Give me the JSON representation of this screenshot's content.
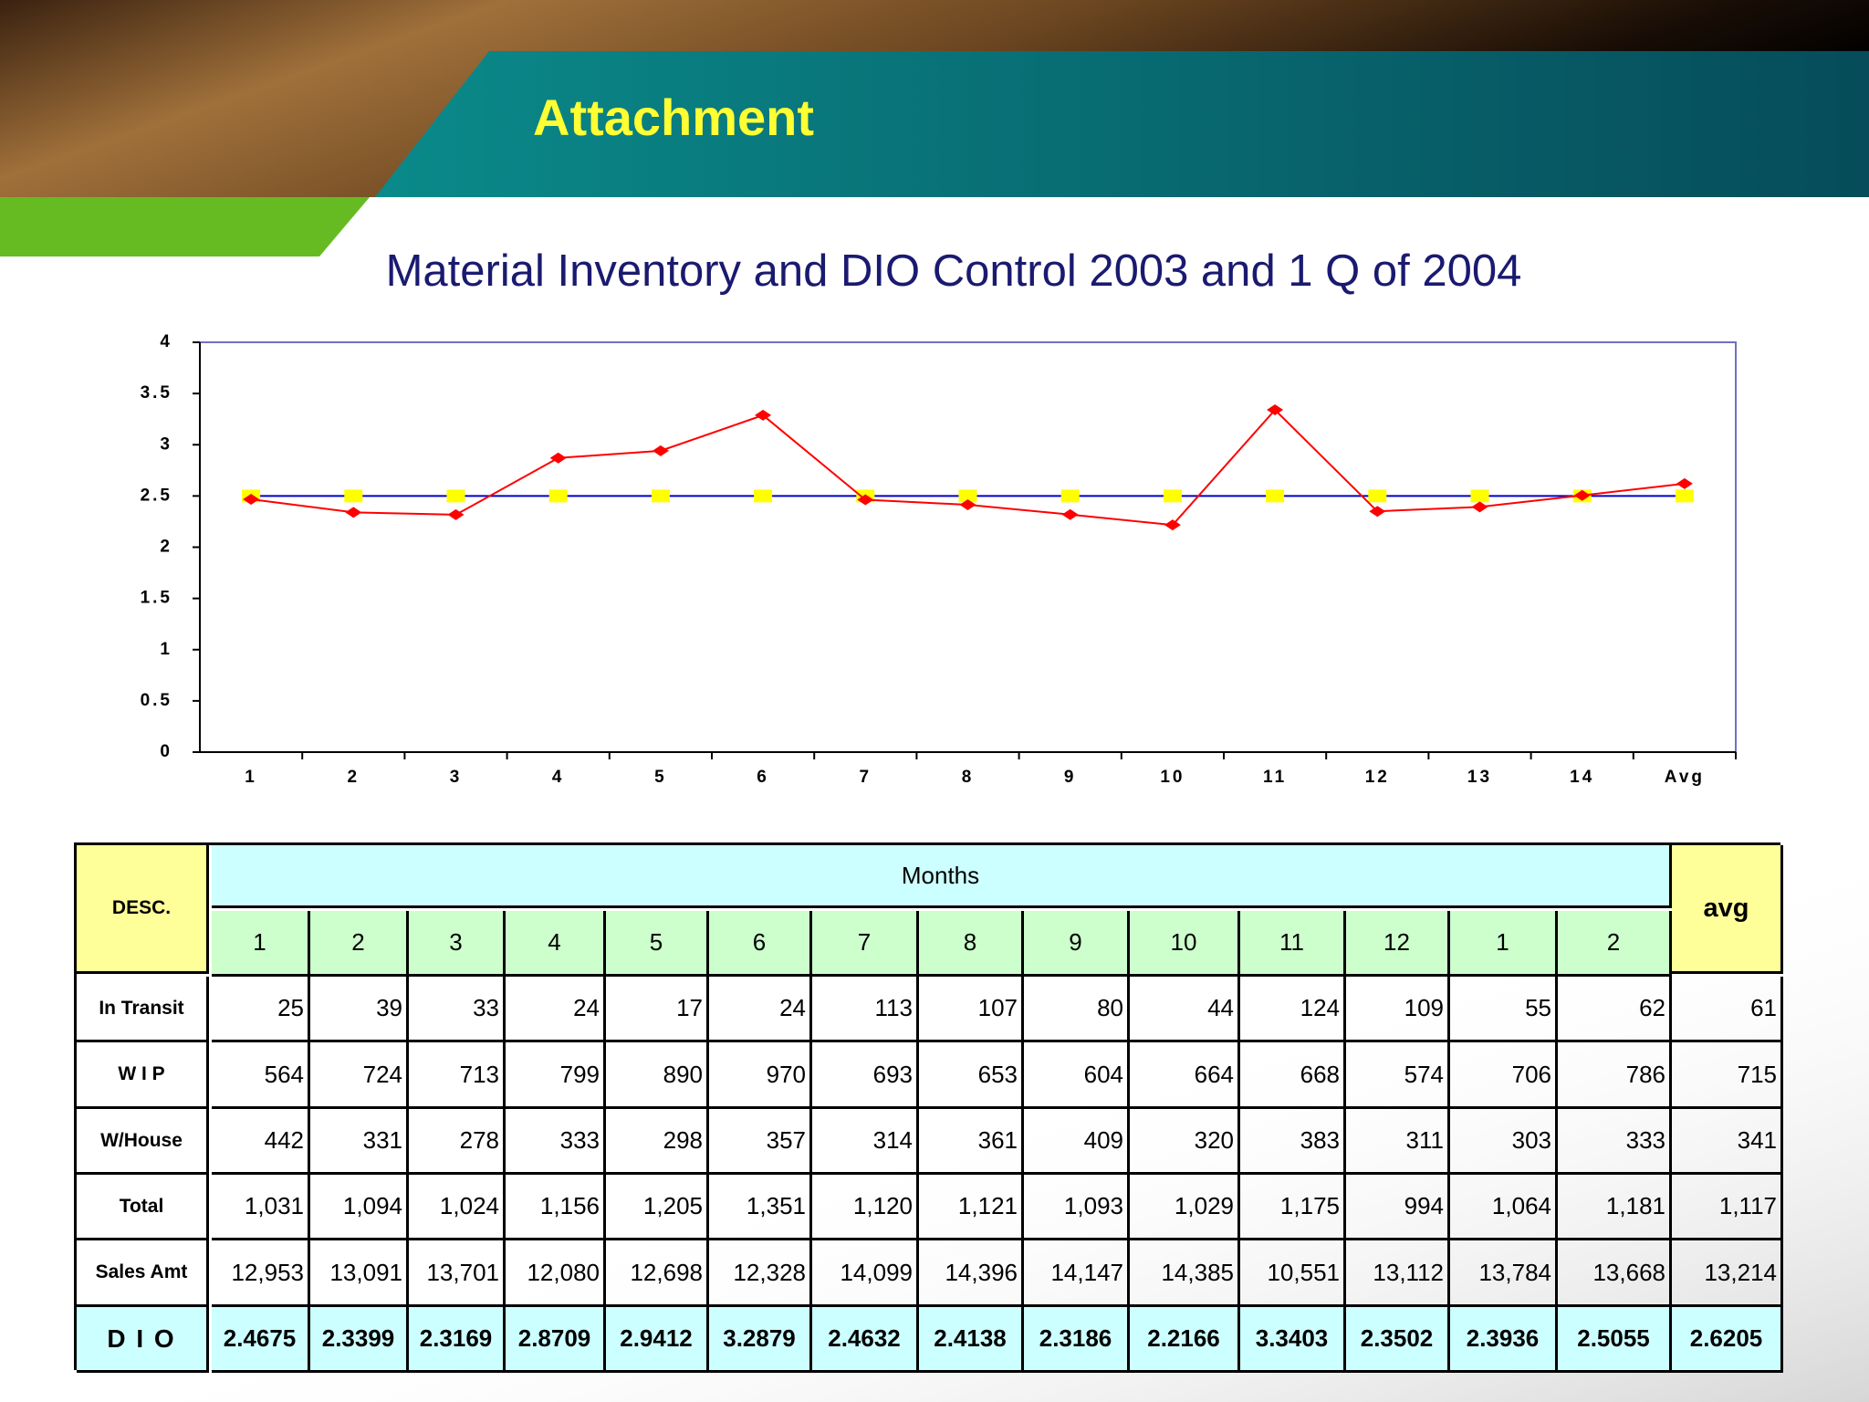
{
  "header": {
    "title": "Attachment"
  },
  "chart_data": {
    "type": "line",
    "title": "Material Inventory and DIO Control 2003 and 1 Q of 2004",
    "categories": [
      "1",
      "2",
      "3",
      "4",
      "5",
      "6",
      "7",
      "8",
      "9",
      "10",
      "11",
      "12",
      "13",
      "14",
      "Avg"
    ],
    "series": [
      {
        "color": "#0000cc",
        "marker_color": "#ffff00",
        "marker": "square",
        "values": [
          2.5,
          2.5,
          2.5,
          2.5,
          2.5,
          2.5,
          2.5,
          2.5,
          2.5,
          2.5,
          2.5,
          2.5,
          2.5,
          2.5,
          2.5
        ]
      },
      {
        "color": "#ff0000",
        "marker_color": "#ff0000",
        "marker": "diamond",
        "values": [
          2.4675,
          2.3399,
          2.3169,
          2.8709,
          2.9412,
          3.2879,
          2.4632,
          2.4138,
          2.3186,
          2.2166,
          3.3403,
          2.3502,
          2.3936,
          2.5055,
          2.6205
        ]
      }
    ],
    "ylim": [
      0,
      4
    ],
    "yticks": [
      0,
      0.5,
      1,
      1.5,
      2,
      2.5,
      3,
      3.5,
      4
    ],
    "grid": false
  },
  "table": {
    "header": {
      "desc": "DESC.",
      "months": "Months",
      "avg": "avg",
      "month_labels": [
        "1",
        "2",
        "3",
        "4",
        "5",
        "6",
        "7",
        "8",
        "9",
        "10",
        "11",
        "12",
        "1",
        "2"
      ]
    },
    "rows": [
      {
        "label": "In Transit",
        "values": [
          "25",
          "39",
          "33",
          "24",
          "17",
          "24",
          "113",
          "107",
          "80",
          "44",
          "124",
          "109",
          "55",
          "62",
          "61"
        ]
      },
      {
        "label": "W I P",
        "values": [
          "564",
          "724",
          "713",
          "799",
          "890",
          "970",
          "693",
          "653",
          "604",
          "664",
          "668",
          "574",
          "706",
          "786",
          "715"
        ]
      },
      {
        "label": "W/House",
        "values": [
          "442",
          "331",
          "278",
          "333",
          "298",
          "357",
          "314",
          "361",
          "409",
          "320",
          "383",
          "311",
          "303",
          "333",
          "341"
        ]
      },
      {
        "label": "Total",
        "values": [
          "1,031",
          "1,094",
          "1,024",
          "1,156",
          "1,205",
          "1,351",
          "1,120",
          "1,121",
          "1,093",
          "1,029",
          "1,175",
          "994",
          "1,064",
          "1,181",
          "1,117"
        ]
      },
      {
        "label": "Sales Amt",
        "values": [
          "12,953",
          "13,091",
          "13,701",
          "12,080",
          "12,698",
          "12,328",
          "14,099",
          "14,396",
          "14,147",
          "14,385",
          "10,551",
          "13,112",
          "13,784",
          "13,668",
          "13,214"
        ]
      },
      {
        "label": "D I O",
        "values": [
          "2.4675",
          "2.3399",
          "2.3169",
          "2.8709",
          "2.9412",
          "3.2879",
          "2.4632",
          "2.4138",
          "2.3186",
          "2.2166",
          "3.3403",
          "2.3502",
          "2.3936",
          "2.5055",
          "2.6205"
        ]
      }
    ]
  }
}
